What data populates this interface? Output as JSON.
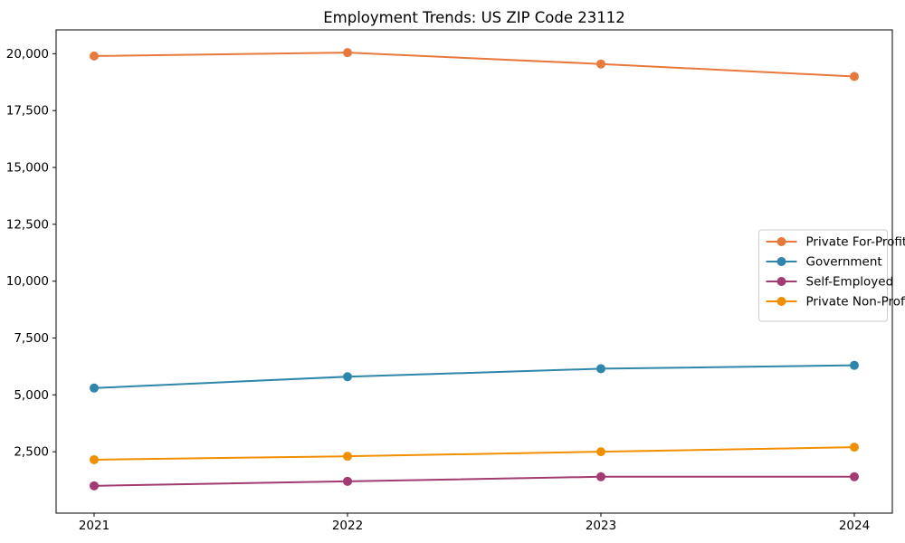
{
  "page": {
    "title": "Employment Trends: US ZIP Code 23112"
  },
  "chart_data": {
    "type": "line",
    "title": "Employment Trends: US ZIP Code 23112",
    "xlabel": "",
    "ylabel": "",
    "x": [
      2021,
      2022,
      2023,
      2024
    ],
    "x_tick_labels": [
      "2021",
      "2022",
      "2023",
      "2024"
    ],
    "y_tick_values": [
      2500,
      5000,
      7500,
      10000,
      12500,
      15000,
      17500,
      20000
    ],
    "y_tick_labels": [
      "2,500",
      "5,000",
      "7,500",
      "10,000",
      "12,500",
      "15,000",
      "17,500",
      "20,000"
    ],
    "xlim": [
      2020.85,
      2024.15
    ],
    "ylim": [
      -200,
      21050
    ],
    "grid": false,
    "legend_position": "center-right",
    "marker": "circle",
    "series": [
      {
        "name": "Private For-Profit",
        "color": "#E8793D",
        "values": [
          19900,
          20050,
          19550,
          19000
        ]
      },
      {
        "name": "Government",
        "color": "#2E86AB",
        "values": [
          5300,
          5800,
          6150,
          6300
        ]
      },
      {
        "name": "Self-Employed",
        "color": "#A23B72",
        "values": [
          1000,
          1200,
          1400,
          1400
        ]
      },
      {
        "name": "Private Non-Profit",
        "color": "#F18F01",
        "values": [
          2150,
          2300,
          2500,
          2700
        ]
      }
    ]
  }
}
